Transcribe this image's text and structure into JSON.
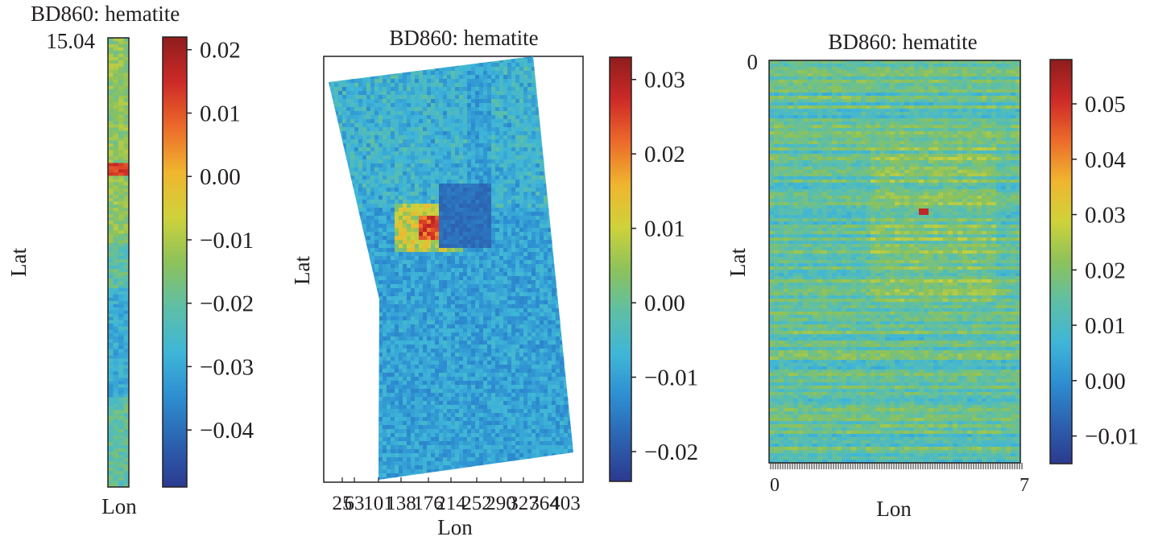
{
  "colormap": [
    "#2b3a8f",
    "#2c62b0",
    "#2d8ed1",
    "#3fb6d8",
    "#5ebfa6",
    "#8dc25a",
    "#cfd23a",
    "#f0b52f",
    "#ec6a2a",
    "#cd2a27",
    "#8e1d1d"
  ],
  "chart_data": [
    {
      "type": "heatmap",
      "title": "BD860: hematite",
      "xlabel": "Lon",
      "ylabel": "Lat",
      "y_tick_labels": [
        "15.04"
      ],
      "x_tick_labels": [],
      "colorbar": {
        "ticks": [
          "0.02",
          "0.01",
          "0.00",
          "−0.01",
          "−0.02",
          "−0.03",
          "−0.04"
        ],
        "range": [
          -0.049,
          0.022
        ]
      }
    },
    {
      "type": "heatmap",
      "title": "BD860: hematite",
      "xlabel": "Lon",
      "ylabel": "Lat",
      "x_tick_labels": [
        "25",
        "63",
        "101",
        "138",
        "176",
        "214",
        "252",
        "290",
        "327",
        "364",
        "403"
      ],
      "colorbar": {
        "ticks": [
          "0.03",
          "0.02",
          "0.01",
          "0.00",
          "−0.01",
          "−0.02"
        ],
        "range": [
          -0.024,
          0.033
        ]
      }
    },
    {
      "type": "heatmap",
      "title": "BD860: hematite",
      "xlabel": "Lon",
      "ylabel": "Lat",
      "y_tick_labels": [
        "0"
      ],
      "x_tick_labels": [
        "0",
        "",
        "",
        "",
        "",
        "",
        "",
        "7"
      ],
      "colorbar": {
        "ticks": [
          "0.05",
          "0.04",
          "0.03",
          "0.02",
          "0.01",
          "0.00",
          "−0.01"
        ],
        "range": [
          -0.015,
          0.058
        ]
      }
    }
  ]
}
